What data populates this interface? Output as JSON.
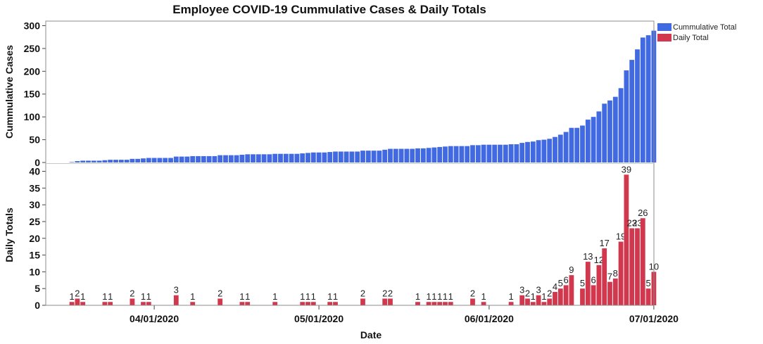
{
  "chart_data": {
    "type": "bar",
    "title": "Employee COVID-19 Cummulative Cases & Daily Totals",
    "xlabel": "Date",
    "x_tick_labels": [
      "04/01/2020",
      "05/01/2020",
      "06/01/2020",
      "07/01/2020"
    ],
    "x_ticks_day_index": [
      17,
      47,
      78,
      108
    ],
    "x_start_date": "03/15/2020",
    "legend": {
      "position": "right",
      "entries": [
        {
          "name": "Cummulative Total",
          "color": "#4169e1"
        },
        {
          "name": "Daily Total",
          "color": "#d1384e"
        }
      ]
    },
    "panels": [
      {
        "ylabel": "Cummulative Cases",
        "ylim": [
          0,
          310
        ],
        "yticks": [
          0,
          50,
          100,
          150,
          200,
          250,
          300
        ],
        "series": "Cummulative Total"
      },
      {
        "ylabel": "Daily Totals",
        "ylim": [
          0,
          42
        ],
        "yticks": [
          0,
          5,
          10,
          15,
          20,
          25,
          30,
          35,
          40
        ],
        "series": "Daily Total",
        "data_labels": true
      }
    ],
    "series": [
      {
        "name": "Daily Total",
        "color": "#d1384e",
        "values": [
          0,
          0,
          1,
          2,
          1,
          0,
          0,
          0,
          1,
          1,
          0,
          0,
          0,
          2,
          0,
          1,
          1,
          0,
          0,
          0,
          0,
          3,
          0,
          0,
          1,
          0,
          0,
          0,
          0,
          2,
          0,
          0,
          0,
          1,
          1,
          0,
          0,
          0,
          0,
          1,
          0,
          0,
          0,
          0,
          1,
          1,
          1,
          0,
          0,
          1,
          1,
          0,
          0,
          0,
          0,
          2,
          0,
          0,
          0,
          2,
          2,
          0,
          0,
          0,
          0,
          1,
          0,
          1,
          1,
          1,
          1,
          1,
          0,
          0,
          0,
          2,
          0,
          1,
          0,
          0,
          0,
          0,
          1,
          0,
          3,
          2,
          1,
          3,
          1,
          2,
          4,
          5,
          6,
          9,
          0,
          5,
          13,
          6,
          12,
          17,
          7,
          8,
          19,
          39,
          23,
          23,
          26,
          5,
          10
        ]
      },
      {
        "name": "Cummulative Total",
        "color": "#4169e1",
        "values": [
          0,
          0,
          1,
          3,
          4,
          4,
          4,
          4,
          5,
          6,
          6,
          6,
          6,
          8,
          8,
          9,
          10,
          10,
          10,
          10,
          10,
          13,
          13,
          13,
          14,
          14,
          14,
          14,
          14,
          16,
          16,
          16,
          16,
          17,
          18,
          18,
          18,
          18,
          18,
          19,
          19,
          19,
          19,
          19,
          20,
          21,
          22,
          22,
          22,
          23,
          24,
          24,
          24,
          24,
          24,
          26,
          26,
          26,
          26,
          28,
          30,
          30,
          30,
          30,
          30,
          31,
          31,
          32,
          33,
          34,
          35,
          36,
          36,
          36,
          36,
          38,
          38,
          39,
          39,
          39,
          39,
          39,
          40,
          40,
          43,
          45,
          46,
          49,
          50,
          52,
          56,
          61,
          67,
          76,
          76,
          81,
          94,
          100,
          112,
          129,
          136,
          144,
          163,
          202,
          225,
          248,
          274,
          279,
          289
        ]
      }
    ]
  }
}
